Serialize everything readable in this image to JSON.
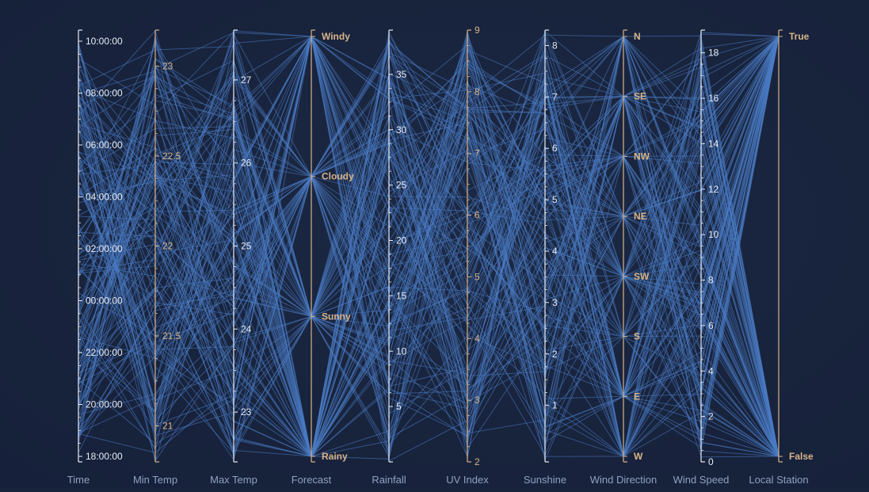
{
  "colors": {
    "background": "#18233c",
    "line": "#4a7bc4",
    "numeric_axis": "#e8ecf4",
    "categorical_axis": "#d8b48a",
    "axis_title": "#8fa3c4"
  },
  "chart_data": {
    "type": "parallel-coordinates",
    "title": "",
    "grid": false,
    "legend": "none",
    "axes": [
      {
        "name": "Time",
        "kind": "time",
        "range_hours": [
          18,
          34
        ],
        "ticks": [
          "18:00:00",
          "20:00:00",
          "22:00:00",
          "00:00:00",
          "02:00:00",
          "04:00:00",
          "06:00:00",
          "08:00:00",
          "10:00:00"
        ],
        "tick_values": [
          18,
          20,
          22,
          24,
          26,
          28,
          30,
          32,
          34
        ],
        "color": "numeric"
      },
      {
        "name": "Min Temp",
        "kind": "numeric",
        "range": [
          20.8,
          23.2
        ],
        "ticks": [
          "21",
          "21.5",
          "22",
          "22.5",
          "23"
        ],
        "tick_values": [
          21,
          21.5,
          22,
          22.5,
          23
        ],
        "color": "categorical"
      },
      {
        "name": "Max Temp",
        "kind": "numeric",
        "range": [
          22.4,
          27.6
        ],
        "ticks": [
          "23",
          "24",
          "25",
          "26",
          "27"
        ],
        "tick_values": [
          23,
          24,
          25,
          26,
          27
        ],
        "color": "numeric"
      },
      {
        "name": "Forecast",
        "kind": "categorical",
        "ticks": [
          "Rainy",
          "Sunny",
          "Cloudy",
          "Windy"
        ],
        "color": "categorical"
      },
      {
        "name": "Rainfall",
        "kind": "numeric",
        "range": [
          0,
          39
        ],
        "ticks": [
          "5",
          "10",
          "15",
          "20",
          "25",
          "30",
          "35"
        ],
        "tick_values": [
          5,
          10,
          15,
          20,
          25,
          30,
          35
        ],
        "color": "numeric"
      },
      {
        "name": "UV Index",
        "kind": "numeric",
        "range": [
          2,
          9
        ],
        "ticks": [
          "2",
          "3",
          "4",
          "5",
          "6",
          "7",
          "8",
          "9"
        ],
        "tick_values": [
          2,
          3,
          4,
          5,
          6,
          7,
          8,
          9
        ],
        "color": "categorical"
      },
      {
        "name": "Sunshine",
        "kind": "numeric",
        "range": [
          -0.1,
          8.3
        ],
        "ticks": [
          "1",
          "2",
          "3",
          "4",
          "5",
          "6",
          "7",
          "8"
        ],
        "tick_values": [
          1,
          2,
          3,
          4,
          5,
          6,
          7,
          8
        ],
        "color": "numeric"
      },
      {
        "name": "Wind Direction",
        "kind": "categorical",
        "ticks": [
          "W",
          "E",
          "S",
          "SW",
          "NE",
          "NW",
          "SE",
          "N"
        ],
        "color": "categorical"
      },
      {
        "name": "Wind Speed",
        "kind": "numeric",
        "range": [
          0,
          19
        ],
        "ticks": [
          "0",
          "2",
          "4",
          "6",
          "8",
          "10",
          "12",
          "14",
          "16",
          "18"
        ],
        "tick_values": [
          0,
          2,
          4,
          6,
          8,
          10,
          12,
          14,
          16,
          18
        ],
        "color": "numeric"
      },
      {
        "name": "Local Station",
        "kind": "categorical",
        "ticks": [
          "False",
          "True"
        ],
        "color": "categorical"
      }
    ],
    "records_shown": 160
  }
}
